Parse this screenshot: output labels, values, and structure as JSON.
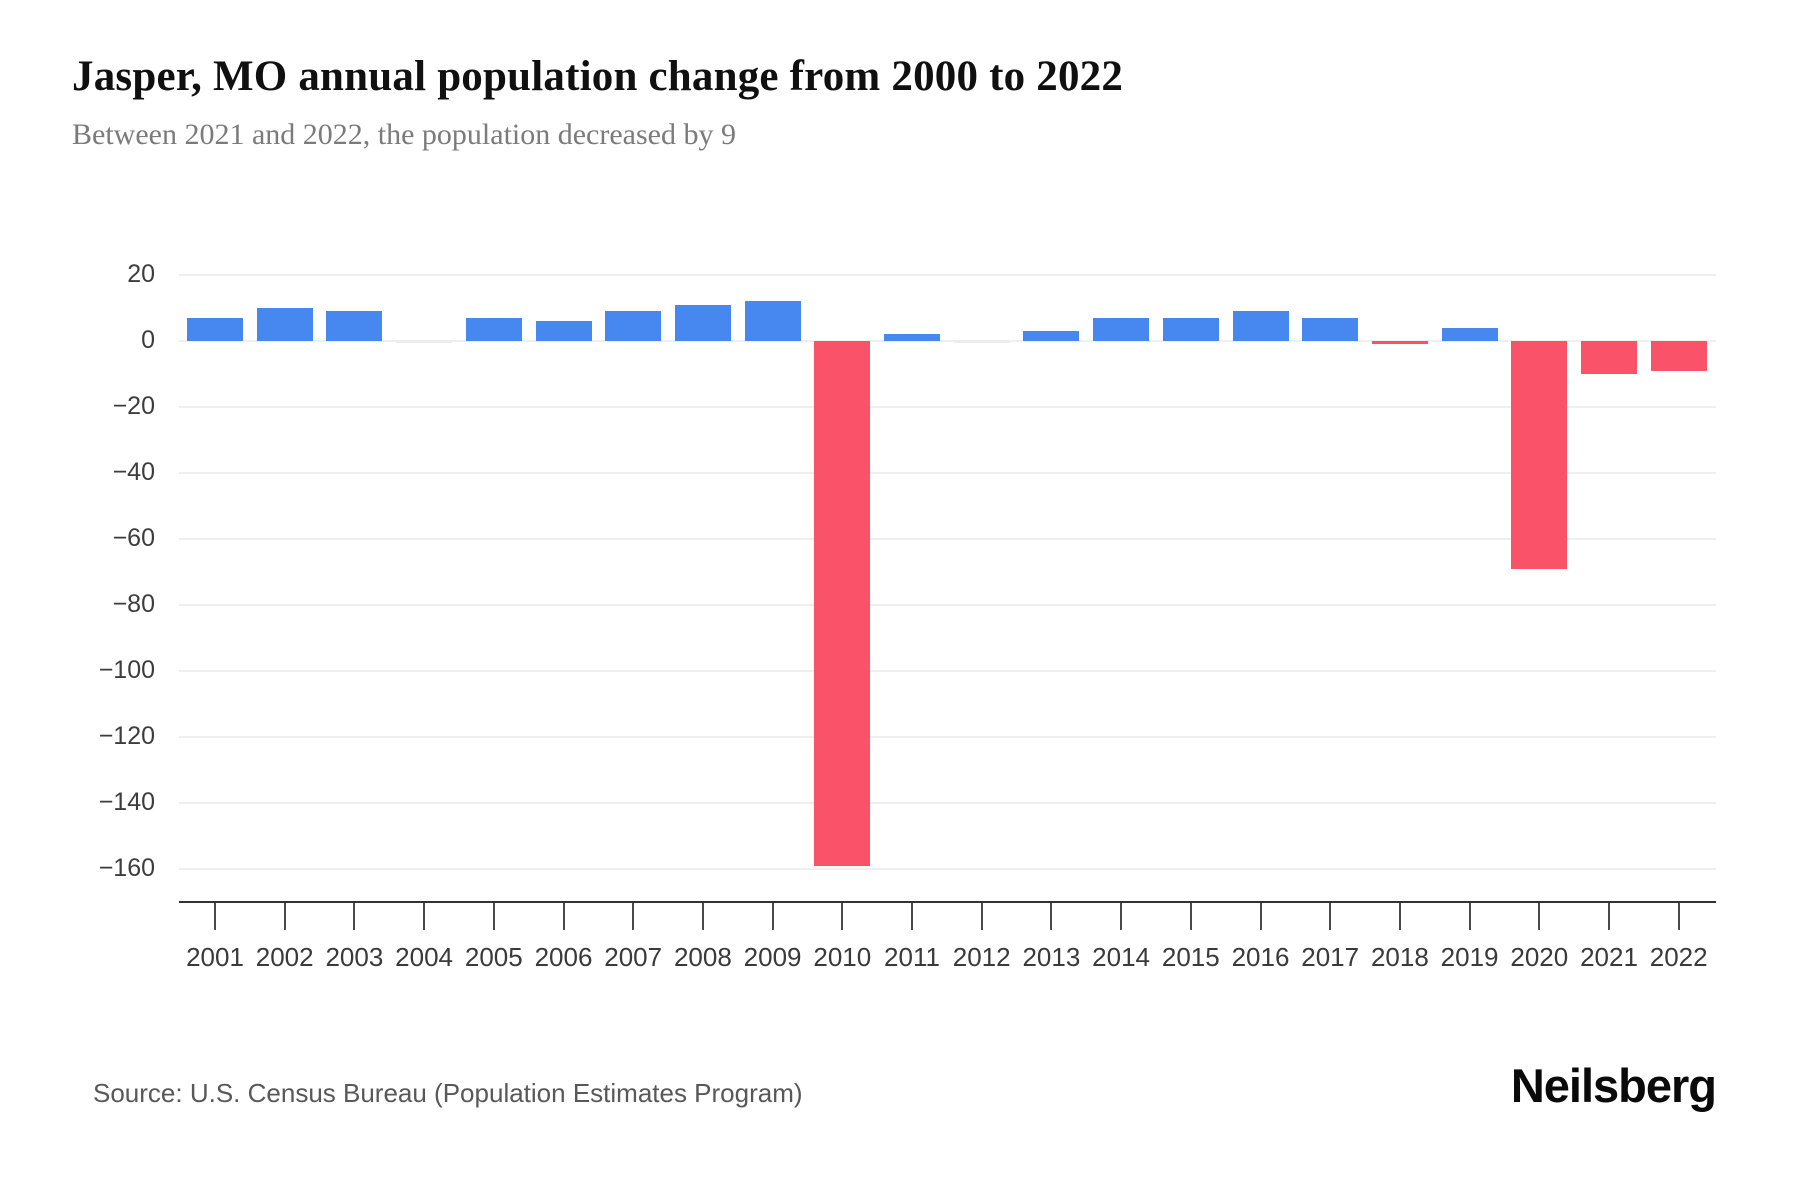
{
  "header": {
    "title": "Jasper, MO annual population change from 2000 to 2022",
    "subtitle": "Between 2021 and 2022, the population decreased by 9"
  },
  "footer": {
    "source": "Source: U.S. Census Bureau (Population Estimates Program)",
    "brand": "Neilsberg"
  },
  "chart_data": {
    "type": "bar",
    "title": "Jasper, MO annual population change from 2000 to 2022",
    "subtitle": "Between 2021 and 2022, the population decreased by 9",
    "categories": [
      "2001",
      "2002",
      "2003",
      "2004",
      "2005",
      "2006",
      "2007",
      "2008",
      "2009",
      "2010",
      "2011",
      "2012",
      "2013",
      "2014",
      "2015",
      "2016",
      "2017",
      "2018",
      "2019",
      "2020",
      "2021",
      "2022"
    ],
    "values": [
      7,
      10,
      9,
      0,
      7,
      6,
      9,
      11,
      12,
      -159,
      2,
      0,
      3,
      7,
      7,
      9,
      7,
      -1,
      4,
      -69,
      -10,
      -9
    ],
    "xlabel": "",
    "ylabel": "",
    "ylim": [
      -170,
      25
    ],
    "yticks": [
      20,
      0,
      -20,
      -40,
      -60,
      -80,
      -100,
      -120,
      -140,
      -160
    ],
    "grid": true,
    "legend": false,
    "colors": {
      "positive": "#4687f0",
      "negative": "#fa5269",
      "zero_bar": "#ececec",
      "gridline": "#efefef",
      "axis": "#333333"
    }
  }
}
